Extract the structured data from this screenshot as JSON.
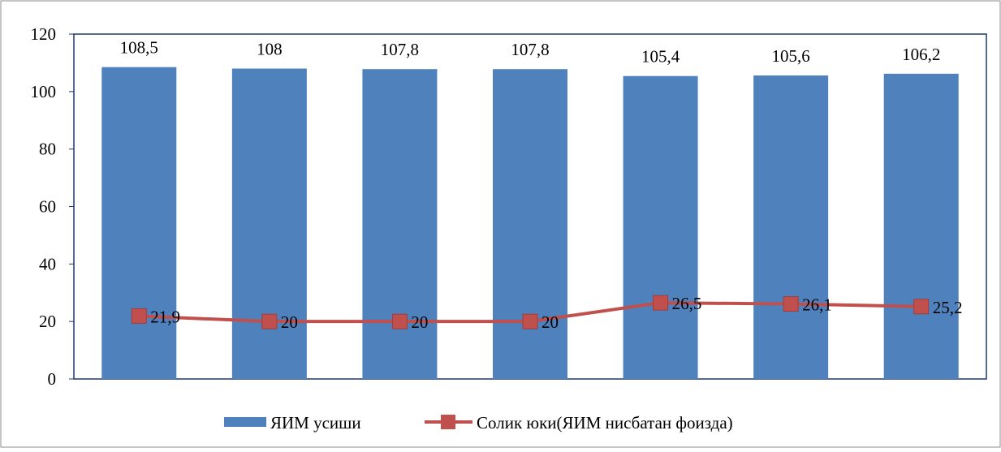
{
  "chart_data": {
    "type": "bar",
    "categories": [
      "",
      "",
      "",
      "",
      "",
      "",
      ""
    ],
    "series": [
      {
        "name": "ЯИМ усиши",
        "type": "bar",
        "color": "#4F81BD",
        "values": [
          108.5,
          108,
          107.8,
          107.8,
          105.4,
          105.6,
          106.2
        ],
        "labels": [
          "108,5",
          "108",
          "107,8",
          "107,8",
          "105,4",
          "105,6",
          "106,2"
        ]
      },
      {
        "name": "Солик юки(ЯИМ нисбатан фоизда)",
        "type": "line",
        "marker": "square",
        "color": "#C0504D",
        "values": [
          21.9,
          20,
          20,
          20,
          26.5,
          26.1,
          25.2
        ],
        "labels": [
          "21,9",
          "20",
          "20",
          "20",
          "26,5",
          "26,1",
          "25,2"
        ]
      }
    ],
    "ylim": [
      0,
      120
    ],
    "yticks": [
      0,
      20,
      40,
      60,
      80,
      100,
      120
    ],
    "ytick_labels": [
      "0",
      "20",
      "40",
      "60",
      "80",
      "100",
      "120"
    ],
    "title": "",
    "xlabel": "",
    "ylabel": "",
    "grid": false,
    "legend_position": "bottom"
  }
}
